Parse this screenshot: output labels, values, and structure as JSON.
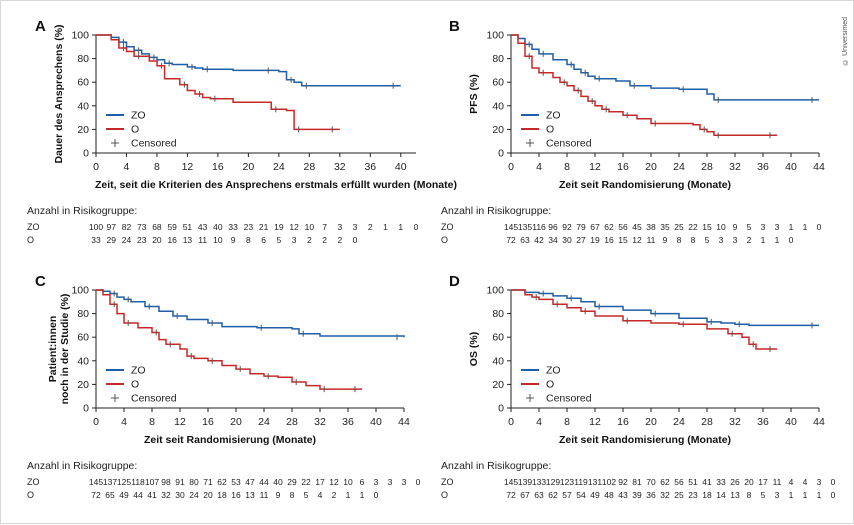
{
  "copyright": "© Universimed",
  "colors": {
    "zo": "#1f5fa8",
    "o": "#c62828",
    "axis": "#222222",
    "censor": "#555555"
  },
  "chart_data": [
    {
      "panel": "A",
      "type": "line",
      "ylabel": "Dauer des Ansprechens (%)",
      "xlabel": "Zeit, seit die Kriterien des Ansprechens erstmals erfüllt wurden (Monate)",
      "xlim": [
        0,
        42
      ],
      "ylim": [
        0,
        100
      ],
      "xticks": [
        0,
        4,
        8,
        12,
        16,
        20,
        24,
        28,
        32,
        36,
        40
      ],
      "yticks": [
        0,
        20,
        40,
        60,
        80,
        100
      ],
      "legend": [
        "ZO",
        "O",
        "Censored"
      ],
      "risk_title": "Anzahl in Risikogruppe:",
      "risk": [
        {
          "label": "ZO",
          "values": [
            "100",
            "97",
            "82",
            "73",
            "68",
            "59",
            "51",
            "43",
            "40",
            "33",
            "23",
            "21",
            "19",
            "12",
            "10",
            "7",
            "3",
            "3",
            "2",
            "1",
            "1",
            "0"
          ]
        },
        {
          "label": "O",
          "values": [
            "33",
            "29",
            "24",
            "23",
            "20",
            "16",
            "13",
            "11",
            "10",
            "9",
            "8",
            "6",
            "5",
            "3",
            "2",
            "2",
            "2",
            "0"
          ]
        }
      ],
      "series": [
        {
          "name": "ZO",
          "x": [
            0,
            2,
            3,
            4,
            5,
            6,
            7,
            8,
            9,
            10,
            12,
            13,
            14,
            18,
            22,
            24,
            25,
            26,
            27,
            40
          ],
          "y": [
            100,
            98,
            94,
            90,
            87,
            84,
            81,
            79,
            76,
            75,
            73,
            72,
            71,
            70,
            70,
            69,
            62,
            60,
            57,
            57
          ]
        },
        {
          "name": "O",
          "x": [
            0,
            2,
            3,
            4,
            5,
            7,
            8,
            9,
            11,
            12,
            13,
            14,
            15,
            18,
            23,
            25,
            26,
            32
          ],
          "y": [
            100,
            96,
            89,
            86,
            82,
            78,
            74,
            63,
            58,
            53,
            50,
            47,
            46,
            43,
            37,
            36,
            20,
            20
          ]
        }
      ]
    },
    {
      "panel": "B",
      "type": "line",
      "ylabel": "PFS (%)",
      "xlabel": "Zeit seit Randomisierung (Monate)",
      "xlim": [
        0,
        44
      ],
      "ylim": [
        0,
        100
      ],
      "xticks": [
        0,
        4,
        8,
        12,
        16,
        20,
        24,
        28,
        32,
        36,
        40,
        44
      ],
      "yticks": [
        0,
        20,
        40,
        60,
        80,
        100
      ],
      "legend": [
        "ZO",
        "O",
        "Censored"
      ],
      "risk_title": "Anzahl in Risikogruppe:",
      "risk": [
        {
          "label": "ZO",
          "values": [
            "145",
            "135",
            "116",
            "96",
            "92",
            "79",
            "67",
            "62",
            "56",
            "45",
            "38",
            "35",
            "25",
            "22",
            "15",
            "10",
            "9",
            "5",
            "3",
            "3",
            "1",
            "1",
            "0"
          ]
        },
        {
          "label": "O",
          "values": [
            "72",
            "63",
            "42",
            "34",
            "30",
            "27",
            "19",
            "16",
            "15",
            "12",
            "11",
            "9",
            "8",
            "8",
            "5",
            "3",
            "3",
            "2",
            "1",
            "1",
            "0"
          ]
        }
      ],
      "series": [
        {
          "name": "ZO",
          "x": [
            0,
            1,
            2,
            3,
            4,
            6,
            8,
            9,
            10,
            11,
            12,
            15,
            17,
            20,
            24,
            28,
            29,
            44
          ],
          "y": [
            100,
            97,
            92,
            88,
            84,
            79,
            75,
            71,
            68,
            65,
            63,
            61,
            57,
            55,
            54,
            50,
            45,
            45
          ]
        },
        {
          "name": "O",
          "x": [
            0,
            1,
            2,
            3,
            4,
            6,
            7,
            8,
            9,
            10,
            11,
            12,
            13,
            14,
            16,
            18,
            20,
            26,
            27,
            28,
            29,
            38
          ],
          "y": [
            100,
            93,
            82,
            72,
            68,
            64,
            60,
            57,
            53,
            48,
            44,
            40,
            37,
            35,
            32,
            29,
            25,
            24,
            20,
            18,
            15,
            15
          ]
        }
      ]
    },
    {
      "panel": "C",
      "type": "line",
      "ylabel": "Patient:innen noch in der Studie (%)",
      "xlabel": "Zeit seit Randomisierung (Monate)",
      "xlim": [
        0,
        44
      ],
      "ylim": [
        0,
        100
      ],
      "xticks": [
        0,
        4,
        8,
        12,
        16,
        20,
        24,
        28,
        32,
        36,
        40,
        44
      ],
      "yticks": [
        0,
        20,
        40,
        60,
        80,
        100
      ],
      "legend": [
        "ZO",
        "O",
        "Censored"
      ],
      "risk_title": "Anzahl in Risikogruppe:",
      "risk": [
        {
          "label": "ZO",
          "values": [
            "145",
            "137",
            "125",
            "118",
            "107",
            "98",
            "91",
            "80",
            "71",
            "62",
            "53",
            "47",
            "44",
            "40",
            "29",
            "22",
            "17",
            "12",
            "10",
            "6",
            "3",
            "3",
            "3",
            "0"
          ]
        },
        {
          "label": "O",
          "values": [
            "72",
            "65",
            "49",
            "44",
            "41",
            "32",
            "30",
            "24",
            "20",
            "18",
            "16",
            "13",
            "11",
            "9",
            "8",
            "5",
            "4",
            "2",
            "1",
            "1",
            "0"
          ]
        }
      ],
      "series": [
        {
          "name": "ZO",
          "x": [
            0,
            1,
            2,
            3,
            4,
            5,
            7,
            9,
            11,
            13,
            16,
            18,
            23,
            28,
            29,
            32,
            44
          ],
          "y": [
            100,
            99,
            97,
            94,
            92,
            90,
            86,
            82,
            78,
            75,
            72,
            69,
            68,
            67,
            63,
            61,
            60
          ]
        },
        {
          "name": "O",
          "x": [
            0,
            1,
            2,
            3,
            4,
            6,
            8,
            9,
            10,
            12,
            13,
            14,
            16,
            18,
            20,
            22,
            24,
            26,
            28,
            30,
            32,
            38
          ],
          "y": [
            100,
            96,
            88,
            80,
            72,
            68,
            64,
            58,
            54,
            50,
            44,
            42,
            40,
            36,
            33,
            29,
            27,
            26,
            22,
            19,
            16,
            16
          ]
        }
      ]
    },
    {
      "panel": "D",
      "type": "line",
      "ylabel": "OS (%)",
      "xlabel": "Zeit seit Randomisierung (Monate)",
      "xlim": [
        0,
        44
      ],
      "ylim": [
        0,
        100
      ],
      "xticks": [
        0,
        4,
        8,
        12,
        16,
        20,
        24,
        28,
        32,
        36,
        40,
        44
      ],
      "yticks": [
        0,
        20,
        40,
        60,
        80,
        100
      ],
      "legend": [
        "ZO",
        "O",
        "Censored"
      ],
      "risk_title": "Anzahl in Risikogruppe:",
      "risk": [
        {
          "label": "ZO",
          "values": [
            "145",
            "139",
            "133",
            "129",
            "123",
            "119",
            "131",
            "102",
            "92",
            "81",
            "70",
            "62",
            "56",
            "51",
            "41",
            "33",
            "26",
            "20",
            "17",
            "11",
            "4",
            "4",
            "3",
            "0"
          ]
        },
        {
          "label": "O",
          "values": [
            "72",
            "67",
            "63",
            "62",
            "57",
            "54",
            "49",
            "48",
            "43",
            "39",
            "36",
            "32",
            "25",
            "23",
            "18",
            "14",
            "13",
            "8",
            "5",
            "3",
            "1",
            "1",
            "1",
            "0"
          ]
        }
      ],
      "series": [
        {
          "name": "ZO",
          "x": [
            0,
            2,
            4,
            6,
            8,
            10,
            12,
            16,
            20,
            24,
            28,
            30,
            32,
            34,
            44
          ],
          "y": [
            100,
            98,
            97,
            95,
            93,
            90,
            86,
            83,
            80,
            76,
            73,
            72,
            71,
            70,
            70
          ]
        },
        {
          "name": "O",
          "x": [
            0,
            2,
            3,
            4,
            6,
            8,
            10,
            12,
            16,
            20,
            24,
            28,
            31,
            33,
            34,
            35,
            38
          ],
          "y": [
            100,
            96,
            94,
            92,
            88,
            85,
            82,
            78,
            74,
            72,
            71,
            67,
            63,
            60,
            54,
            50,
            50
          ]
        }
      ]
    }
  ]
}
